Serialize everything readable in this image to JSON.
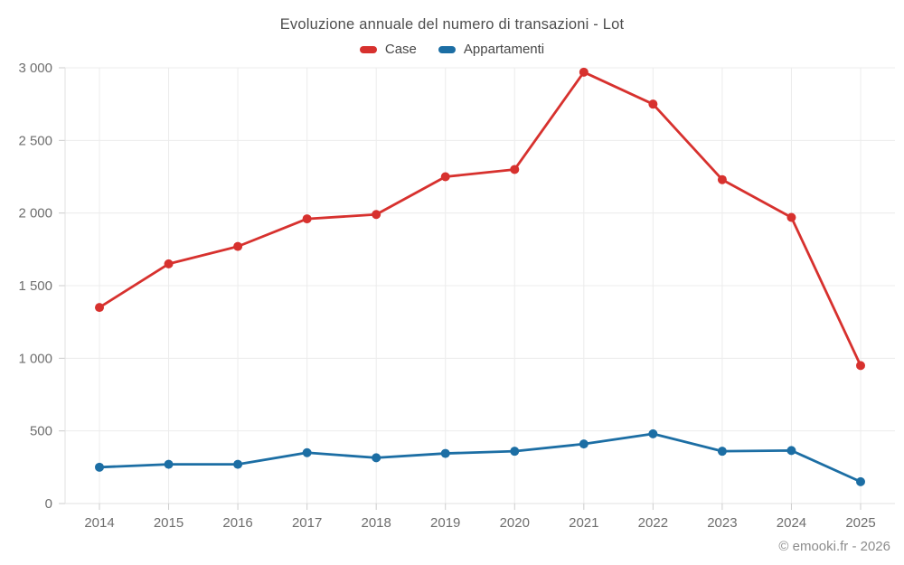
{
  "chart_data": {
    "type": "line",
    "title": "Evoluzione annuale del numero di transazioni - Lot",
    "categories": [
      "2014",
      "2015",
      "2016",
      "2017",
      "2018",
      "2019",
      "2020",
      "2021",
      "2022",
      "2023",
      "2024",
      "2025"
    ],
    "series": [
      {
        "name": "Case",
        "color": "#d7312e",
        "values": [
          1350,
          1650,
          1770,
          1960,
          1990,
          2250,
          2300,
          2970,
          2750,
          2230,
          1970,
          950
        ]
      },
      {
        "name": "Appartamenti",
        "color": "#1c6ea4",
        "values": [
          250,
          270,
          270,
          350,
          315,
          345,
          360,
          410,
          480,
          360,
          365,
          150
        ]
      }
    ],
    "xlabel": "",
    "ylabel": "",
    "ylim": [
      0,
      3000
    ],
    "ytick_interval": 500,
    "ytick_labels": [
      "0",
      "500",
      "1 000",
      "1 500",
      "2 000",
      "2 500",
      "3 000"
    ],
    "grid": true,
    "legend_position": "top"
  },
  "footer": {
    "credit": "© emooki.fr - 2026"
  },
  "colors": {
    "case": "#d7312e",
    "appartamenti": "#1c6ea4",
    "grid_line": "#ececec",
    "axis_line": "#e0e0e0",
    "tick_mark": "#cccccc",
    "title_text": "#4e4e4e",
    "axis_text": "#6e6e6e",
    "footer_text": "#8c8c8c"
  }
}
